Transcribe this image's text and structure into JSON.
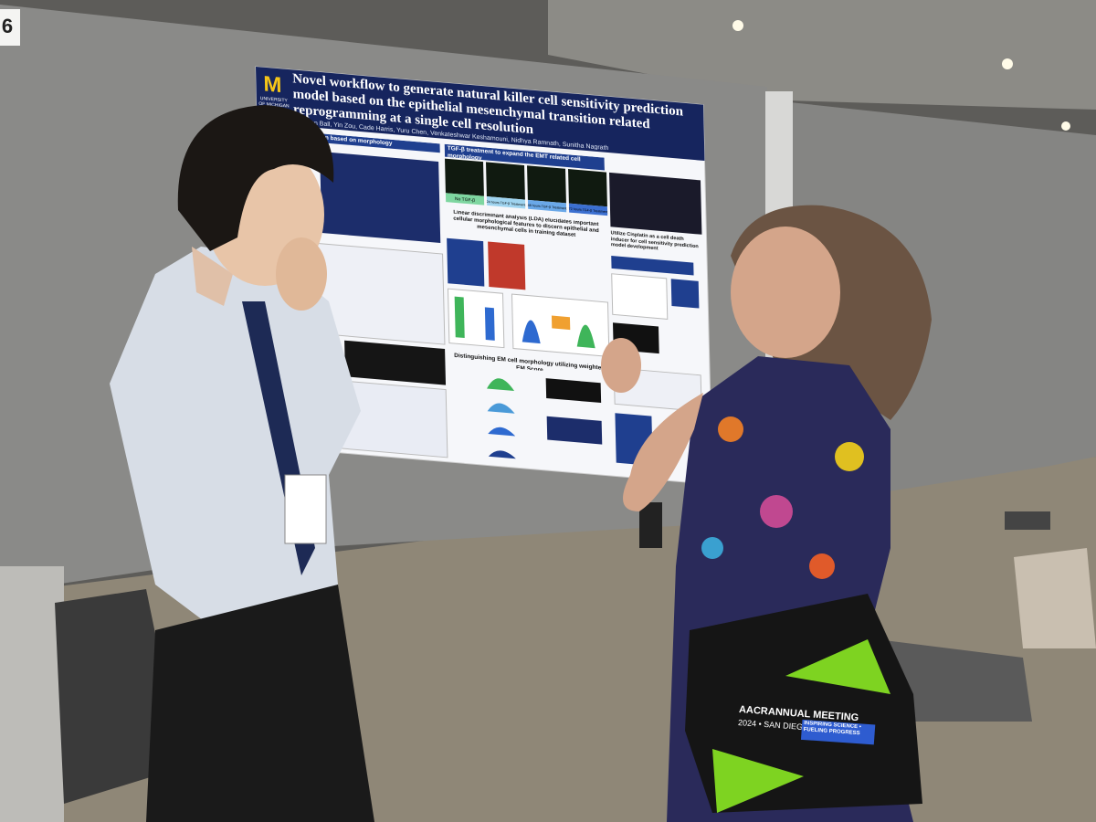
{
  "booth_number": "6",
  "poster": {
    "logo": "M",
    "university": "UNIVERSITY OF MICHIGAN",
    "title": "Novel workflow to generate natural killer cell sensitivity prediction model based on the epithelial mesenchymal transition related reprogramming at a single cell resolution",
    "authors": "Harrison Ball, Yin Zou, Cade Harris, Yuru Chen, Venkateshwar Keshamouni, Nidhya Ramnath, Sunitha Nagrath",
    "sections": [
      "sensitivity prediction based on morphology",
      "TGF-β treatment to expand the EMT related cell morphology",
      "Linear discriminant analysis (LDA) elucidates important cellular morphological features to discern epithelial and mesenchymal cells in training dataset",
      "Distinguishing EM cell morphology utilizing weighted EM Score",
      "Utilize Cisplatin as a cell death inducer for cell sensitivity prediction model development"
    ],
    "panel_labels": [
      "No TGF-β",
      "24 hours TGF-β Treatment",
      "48 hours TGF-β Treatment",
      "72 hours TGF-β Treatment"
    ]
  },
  "bag": {
    "line1": "AACR",
    "line2": "ANNUAL MEETING",
    "line3": "2024 • SAN DIEGO",
    "slogan": "INSPIRING SCIENCE • FUELING PROGRESS"
  }
}
